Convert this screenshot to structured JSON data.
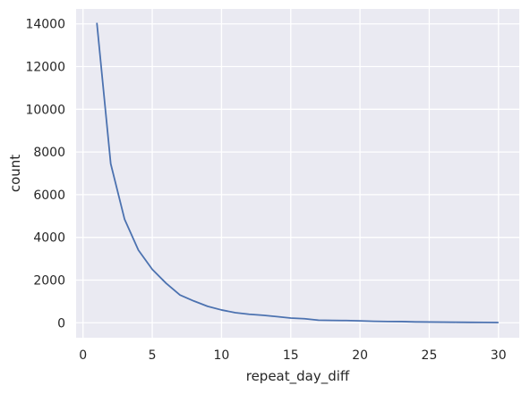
{
  "chart_data": {
    "type": "line",
    "title": "",
    "xlabel": "repeat_day_diff",
    "ylabel": "count",
    "xlim": [
      -0.5,
      31.5
    ],
    "ylim": [
      -700,
      14700
    ],
    "x_ticks": [
      0,
      5,
      10,
      15,
      20,
      25,
      30
    ],
    "y_ticks": [
      0,
      2000,
      4000,
      6000,
      8000,
      10000,
      12000,
      14000
    ],
    "grid": true,
    "style": {
      "background": "#eaeaf2",
      "grid_color": "#ffffff",
      "line_color": "#4c72b0"
    },
    "series": [
      {
        "x": [
          1,
          2,
          3,
          4,
          5,
          6,
          7,
          8,
          9,
          10,
          11,
          12,
          13,
          14,
          15,
          16,
          17,
          18,
          19,
          20,
          21,
          22,
          23,
          24,
          25,
          26,
          27,
          28,
          29,
          30
        ],
        "values": [
          14050,
          7450,
          4850,
          3400,
          2500,
          1850,
          1300,
          1020,
          770,
          600,
          470,
          400,
          350,
          290,
          220,
          190,
          120,
          110,
          105,
          90,
          70,
          60,
          55,
          40,
          35,
          30,
          25,
          20,
          15,
          10
        ]
      }
    ]
  }
}
